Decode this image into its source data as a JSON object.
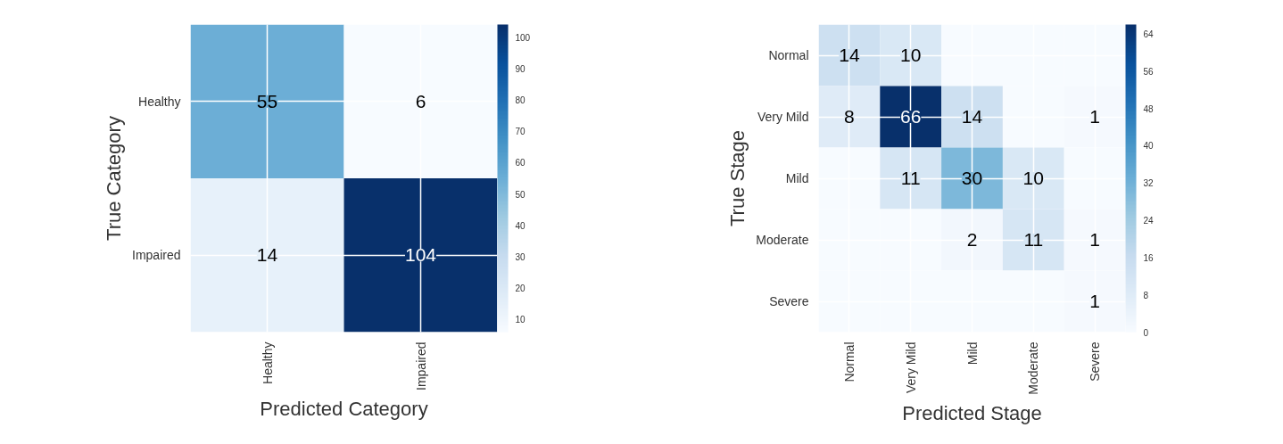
{
  "chart_data": [
    {
      "type": "heatmap",
      "xlabel": "Predicted Category",
      "ylabel": "True Category",
      "categories": [
        "Healthy",
        "Impaired"
      ],
      "y_categories": [
        "Healthy",
        "Impaired"
      ],
      "cells": [
        [
          55,
          6
        ],
        [
          14,
          104
        ]
      ],
      "clim": [
        6,
        104
      ],
      "cticks": [
        10,
        20,
        30,
        40,
        50,
        60,
        70,
        80,
        90,
        100
      ],
      "grid": true,
      "data_labels": true
    },
    {
      "type": "heatmap",
      "xlabel": "Predicted Stage",
      "ylabel": "True Stage",
      "categories": [
        "Normal",
        "Very Mild",
        "Mild",
        "Moderate",
        "Severe"
      ],
      "y_categories": [
        "Normal",
        "Very Mild",
        "Mild",
        "Moderate",
        "Severe"
      ],
      "cells": [
        [
          14,
          10,
          0,
          0,
          0
        ],
        [
          8,
          66,
          14,
          0,
          1
        ],
        [
          0,
          11,
          30,
          10,
          0
        ],
        [
          0,
          0,
          2,
          11,
          1
        ],
        [
          0,
          0,
          0,
          0,
          1
        ]
      ],
      "cell_labels": [
        [
          "14",
          "10",
          null,
          null,
          null
        ],
        [
          "8",
          "66",
          "14",
          null,
          "1"
        ],
        [
          null,
          "11",
          "30",
          "10",
          null
        ],
        [
          null,
          null,
          "2",
          "11",
          "1"
        ],
        [
          null,
          null,
          null,
          null,
          "1"
        ]
      ],
      "clim": [
        0,
        66
      ],
      "cticks": [
        0,
        8,
        16,
        24,
        32,
        40,
        48,
        56,
        64
      ],
      "grid": true
    }
  ]
}
